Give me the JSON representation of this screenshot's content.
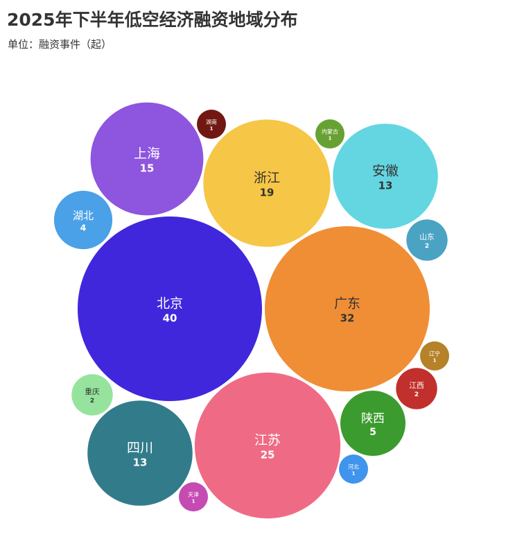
{
  "chart_data": {
    "type": "bubble",
    "title": "2025年下半年低空经济融资地域分布",
    "subtitle": "单位：融资事件（起）",
    "unit": "起",
    "items": [
      {
        "name": "北京",
        "value": 40,
        "color": "#4027dc",
        "text_color": "#ffffff"
      },
      {
        "name": "广东",
        "value": 32,
        "color": "#f08e35",
        "text_color": "#333333"
      },
      {
        "name": "江苏",
        "value": 25,
        "color": "#ef6b85",
        "text_color": "#ffffff"
      },
      {
        "name": "浙江",
        "value": 19,
        "color": "#f6c646",
        "text_color": "#333333"
      },
      {
        "name": "上海",
        "value": 15,
        "color": "#8e55df",
        "text_color": "#ffffff"
      },
      {
        "name": "安徽",
        "value": 13,
        "color": "#64d6e2",
        "text_color": "#333333"
      },
      {
        "name": "四川",
        "value": 13,
        "color": "#327b8b",
        "text_color": "#ffffff"
      },
      {
        "name": "陕西",
        "value": 5,
        "color": "#3c9b2e",
        "text_color": "#ffffff"
      },
      {
        "name": "湖北",
        "value": 4,
        "color": "#4aa1e8",
        "text_color": "#ffffff"
      },
      {
        "name": "山东",
        "value": 2,
        "color": "#4aa3c3",
        "text_color": "#ffffff"
      },
      {
        "name": "江西",
        "value": 2,
        "color": "#c1302c",
        "text_color": "#ffffff"
      },
      {
        "name": "重庆",
        "value": 2,
        "color": "#96e39d",
        "text_color": "#333333"
      },
      {
        "name": "湖南",
        "value": 1,
        "color": "#701811",
        "text_color": "#ffffff"
      },
      {
        "name": "内蒙古",
        "value": 1,
        "color": "#68a133",
        "text_color": "#ffffff"
      },
      {
        "name": "辽宁",
        "value": 1,
        "color": "#b58129",
        "text_color": "#ffffff"
      },
      {
        "name": "河北",
        "value": 1,
        "color": "#3f94ec",
        "text_color": "#ffffff"
      },
      {
        "name": "天津",
        "value": 1,
        "color": "#c54bb3",
        "text_color": "#ffffff"
      }
    ]
  }
}
